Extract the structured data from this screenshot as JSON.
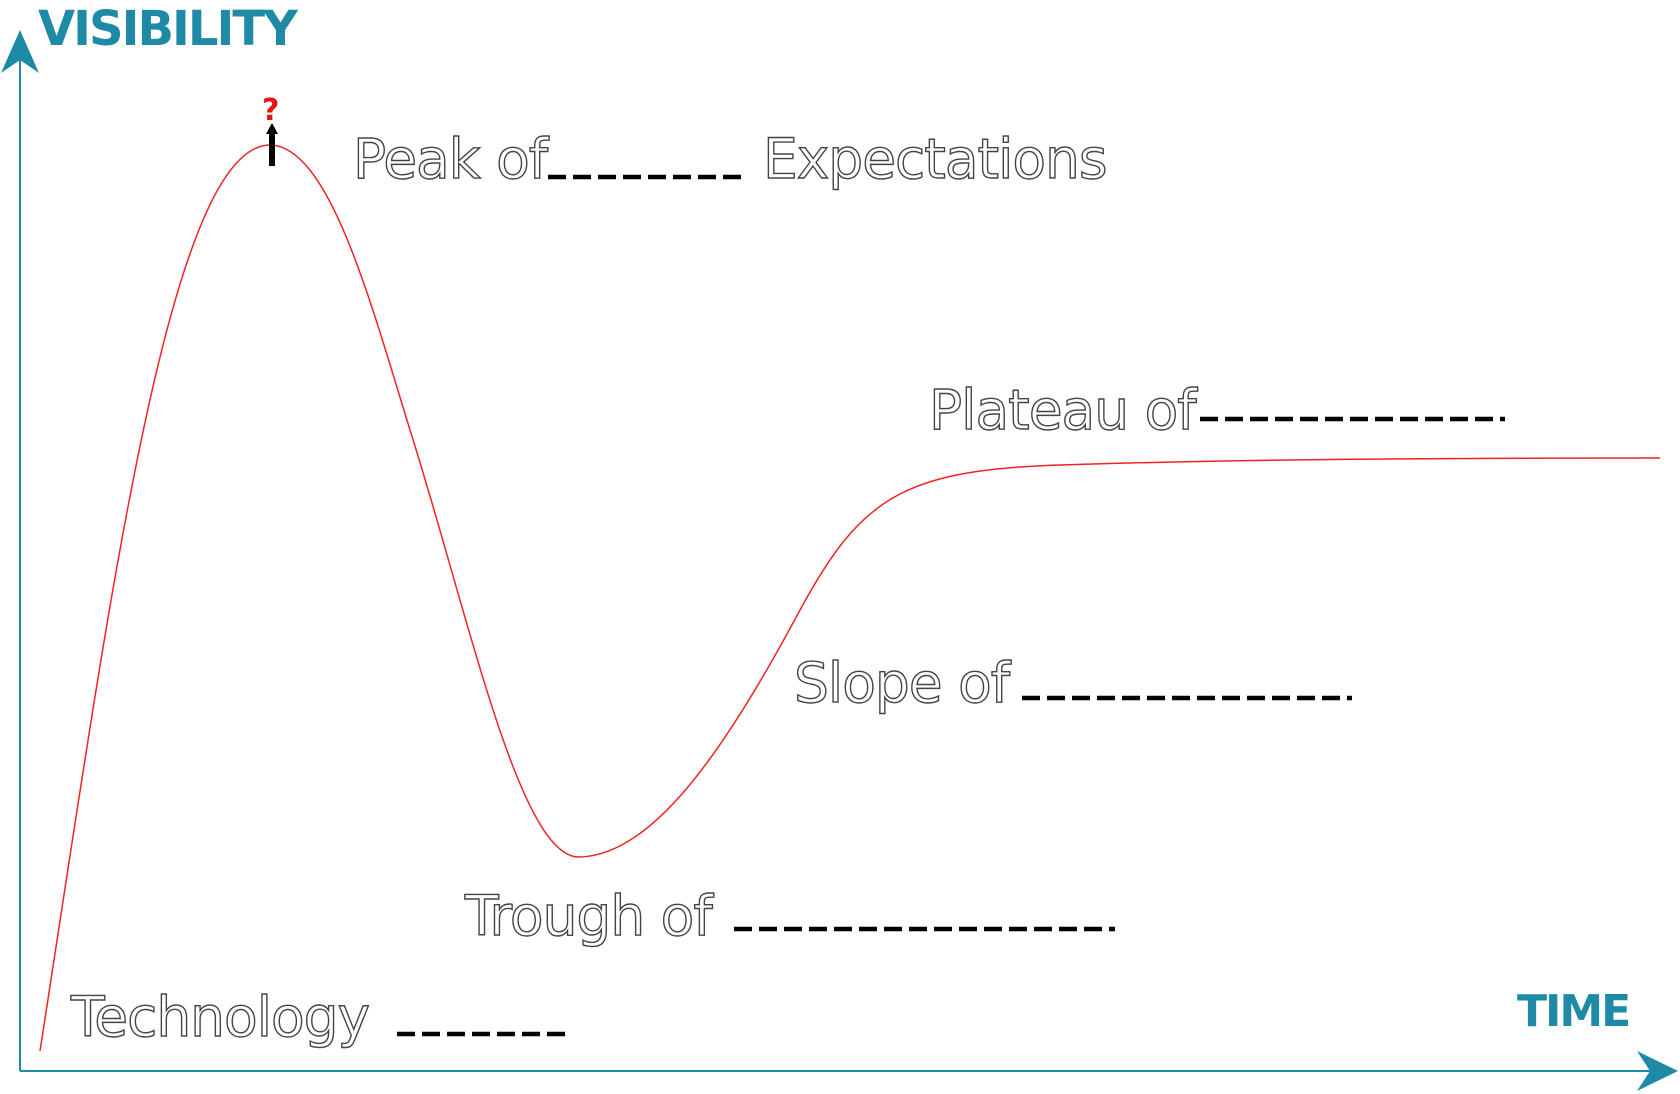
{
  "axes": {
    "y_title": "VISIBILITY",
    "x_title": "TIME",
    "color": "#1e8aa6"
  },
  "curve": {
    "color": "#ee2424"
  },
  "peak_marker": {
    "symbol": "?",
    "symbol_color": "#ee1111",
    "arrow_color": "#000000"
  },
  "phases": [
    {
      "id": "peak",
      "label": "Peak of",
      "label_after": "Expectations"
    },
    {
      "id": "plateau",
      "label": "Plateau of"
    },
    {
      "id": "slope",
      "label": "Slope of"
    },
    {
      "id": "trough",
      "label": "Trough of"
    },
    {
      "id": "trigger",
      "label": "Technology"
    }
  ],
  "label_style": {
    "outline_color": "#444444",
    "blank_color": "#000000"
  }
}
